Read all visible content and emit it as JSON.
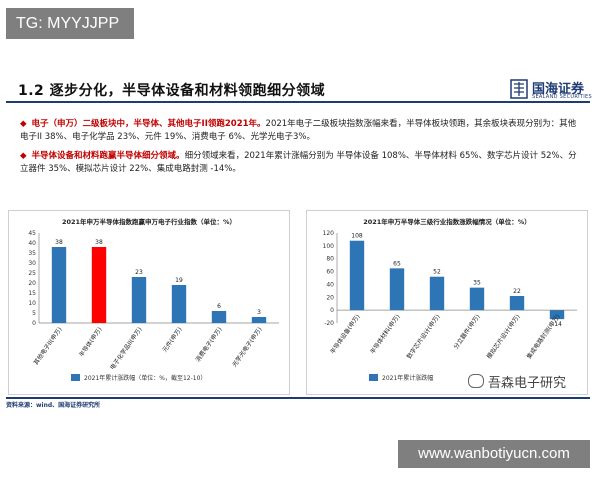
{
  "watermark_top": "TG: MYYJJPP",
  "watermark_bottom": "www.wanbotiyucn.com",
  "slide_title": "1.2 逐步分化，半导体设备和材料领跑细分领域",
  "logo": {
    "cn": "国海证券",
    "en": "SEALAND SECURITIES"
  },
  "bullets": [
    {
      "highlight": "电子（申万）二级板块中，半导体、其他电子II领跑2021年。",
      "text": "2021年电子二级板块指数涨幅来看，半导体板块领跑，其余板块表现分别为：其他电子II 38%、电子化学品 23%、元件 19%、消费电子 6%、光学光电子3%。"
    },
    {
      "highlight": "半导体设备和材料跑赢半导体细分领域。",
      "text": "细分领域来看，2021年累计涨幅分别为 半导体设备 108%、半导体材料 65%、数字芯片设计 52%、分立器件 35%、模拟芯片设计 22%、集成电路封测 -14%。"
    }
  ],
  "footer": "资料来源：wind、国海证券研究所",
  "wechat_caption": "吾森电子研究",
  "colors": {
    "bar": "#2e75b6",
    "highlight_bar": "#ff0000",
    "accent": "#c00000",
    "navy": "#1f3b73"
  },
  "chart_data": [
    {
      "type": "bar",
      "title": "2021年申万半导体指数跑赢申万电子行业指数（单位：%）",
      "categories": [
        "其他电子II(申万)",
        "半导体(申万)",
        "电子化学品II(申万)",
        "元件(申万)",
        "消费电子(申万)",
        "光学光电子(申万)"
      ],
      "values": [
        38,
        38,
        23,
        19,
        6,
        3
      ],
      "highlight_index": 1,
      "ylim": [
        0,
        45
      ],
      "yticks": [
        0,
        5,
        10,
        15,
        20,
        25,
        30,
        35,
        40,
        45
      ],
      "legend": "2021年累计涨跌幅（单位：%，截至12-10）",
      "legend_position": "bottom",
      "grid": false
    },
    {
      "type": "bar",
      "title": "2021年申万半导体三级行业指数涨跌幅情况（单位：%）",
      "categories": [
        "半导体设备(申万)",
        "半导体材料(申万)",
        "数字芯片设计(申万)",
        "分立器件(申万)",
        "模拟芯片设计(申万)",
        "集成电路封测(申万)"
      ],
      "values": [
        108,
        65,
        52,
        35,
        22,
        -14
      ],
      "ylim": [
        -20,
        120
      ],
      "yticks": [
        -20,
        0,
        20,
        40,
        60,
        80,
        100,
        120
      ],
      "legend": "2021年累计涨跌幅",
      "legend_position": "bottom",
      "grid": false
    }
  ]
}
